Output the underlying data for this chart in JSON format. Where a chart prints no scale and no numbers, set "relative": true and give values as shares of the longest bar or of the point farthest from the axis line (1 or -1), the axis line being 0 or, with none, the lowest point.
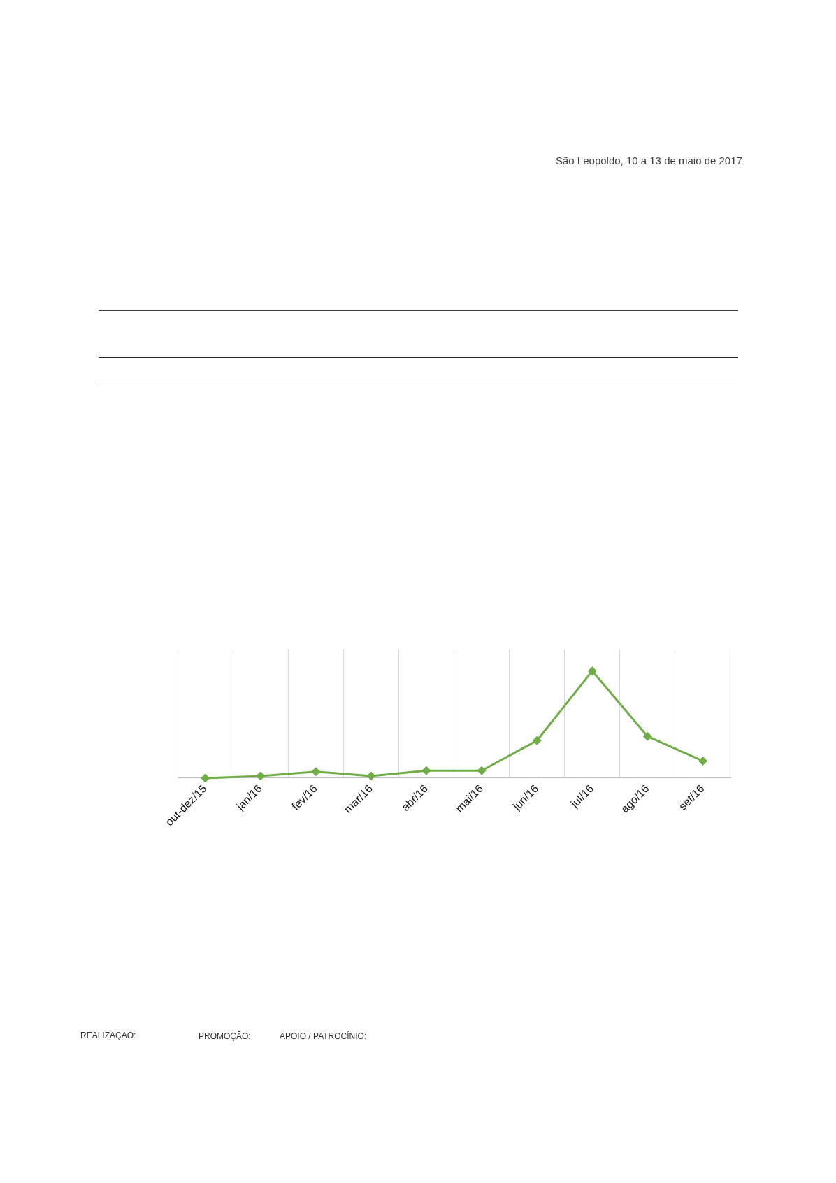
{
  "chart_data": {
    "type": "line",
    "categories": [
      "out-dez/15",
      "jan/16",
      "fev/16",
      "mar/16",
      "abr/16",
      "mai/16",
      "jun/16",
      "jul/16",
      "ago/16",
      "set/16"
    ],
    "series": [
      {
        "color": "#70ad47",
        "values": [
          0,
          0.02,
          0.06,
          0.02,
          0.07,
          0.07,
          0.35,
          1,
          0.39,
          0.16
        ]
      }
    ],
    "relative": true,
    "grid": "x",
    "marker": "diamond",
    "line_style": "solid",
    "annotations": [
      "São Leopoldo, 10 a 13 de maio de 2017",
      "REALIZAÇÃO:",
      "PROMOÇÃO:",
      "APOIO / PATROCÍNIO:"
    ]
  }
}
